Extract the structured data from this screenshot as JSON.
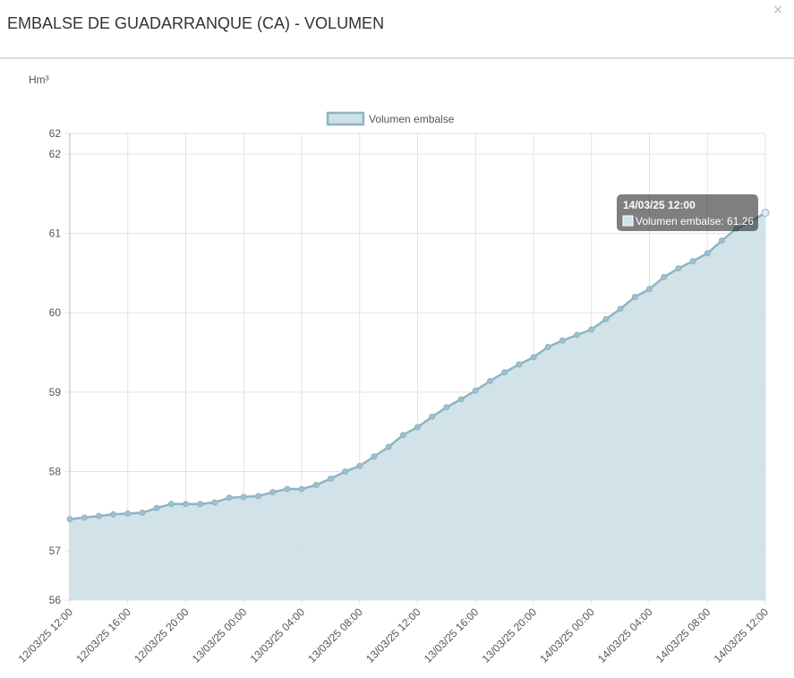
{
  "header": {
    "title": "EMBALSE DE GUADARRANQUE (CA) - VOLUMEN",
    "close": "×"
  },
  "chart_data": {
    "type": "line",
    "y_label": "Hm³",
    "categories": [
      "12/03/25 12:00",
      null,
      null,
      null,
      "12/03/25 16:00",
      null,
      null,
      null,
      "12/03/25 20:00",
      null,
      null,
      null,
      "13/03/25 00:00",
      null,
      null,
      null,
      "13/03/25 04:00",
      null,
      null,
      null,
      "13/03/25 08:00",
      null,
      null,
      null,
      "13/03/25 12:00",
      null,
      null,
      null,
      "13/03/25 16:00",
      null,
      null,
      null,
      "13/03/25 20:00",
      null,
      null,
      null,
      "14/03/25 00:00",
      null,
      null,
      null,
      "14/03/25 04:00",
      null,
      null,
      null,
      "14/03/25 08:00",
      null,
      null,
      null,
      "14/03/25 12:00"
    ],
    "series": [
      {
        "name": "Volumen embalse",
        "color": "#8fb3c4",
        "fill": "#cfe0e7",
        "values": [
          57.4,
          57.42,
          57.44,
          57.46,
          57.47,
          57.48,
          57.54,
          57.59,
          57.59,
          57.59,
          57.61,
          57.67,
          57.68,
          57.69,
          57.74,
          57.78,
          57.78,
          57.83,
          57.91,
          58.0,
          58.07,
          58.19,
          58.31,
          58.46,
          58.56,
          58.69,
          58.81,
          58.91,
          59.02,
          59.14,
          59.25,
          59.35,
          59.44,
          59.57,
          59.65,
          59.72,
          59.79,
          59.92,
          60.05,
          60.2,
          60.3,
          60.45,
          60.56,
          60.65,
          60.75,
          60.91,
          61.06,
          61.15,
          61.26
        ]
      }
    ],
    "ylim": [
      56.38,
      62.26
    ],
    "yticks": [
      {
        "value": 56.38,
        "label": "56"
      },
      57,
      58,
      59,
      60,
      61,
      62,
      {
        "value": 62.26,
        "label": "62"
      }
    ],
    "grid": true,
    "tooltip": {
      "title": "14/03/25 12:00",
      "text": "Volumen embalse: 61.26"
    }
  }
}
